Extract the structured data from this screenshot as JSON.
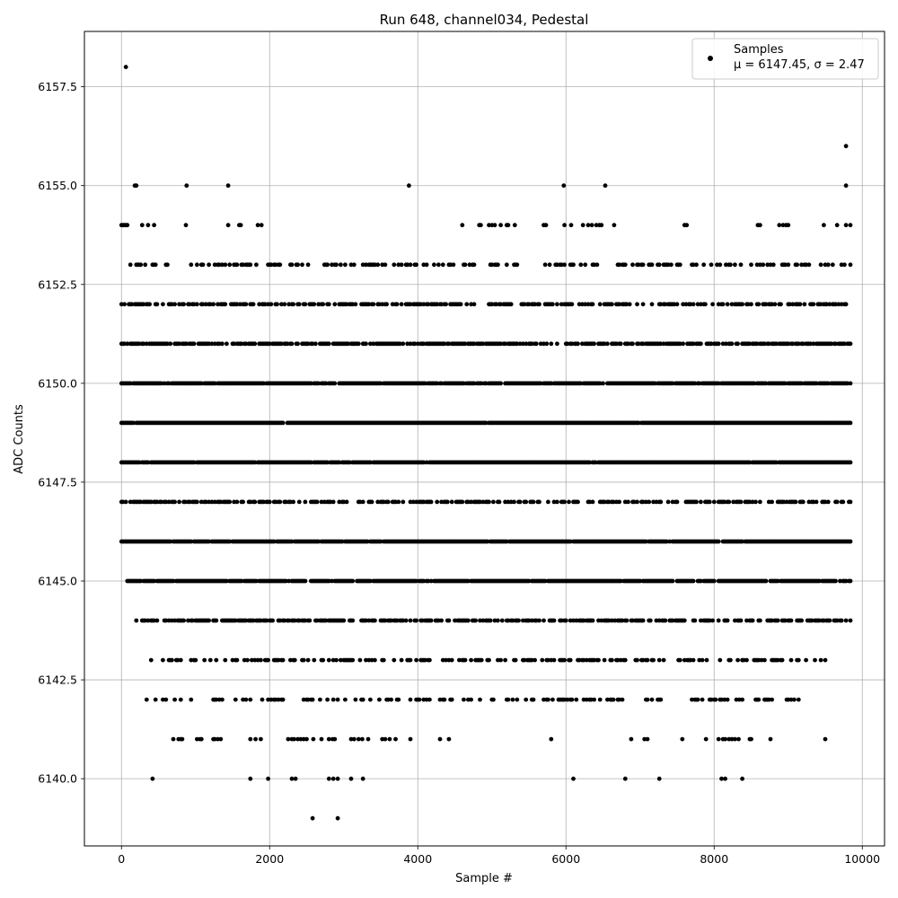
{
  "chart_data": {
    "type": "scatter",
    "title": "Run 648, channel034, Pedestal",
    "xlabel": "Sample #",
    "ylabel": "ADC Counts",
    "xlim": [
      -500,
      10300
    ],
    "ylim": [
      6138.3,
      6158.9
    ],
    "xticks": [
      0,
      2000,
      4000,
      6000,
      8000,
      10000
    ],
    "yticks": [
      6140.0,
      6142.5,
      6145.0,
      6147.5,
      6150.0,
      6152.5,
      6155.0,
      6157.5
    ],
    "xtick_labels": [
      "0",
      "2000",
      "4000",
      "6000",
      "8000",
      "10000"
    ],
    "ytick_labels": [
      "6140.0",
      "6142.5",
      "6145.0",
      "6147.5",
      "6150.0",
      "6152.5",
      "6155.0",
      "6157.5"
    ],
    "grid": true,
    "legend": {
      "placement": "top-right",
      "label_line1": "Samples",
      "label_line2": "μ = 6147.45, σ = 2.47"
    },
    "series": [
      {
        "name": "Samples",
        "color": "#000000",
        "sample_count": 9840,
        "levels": [
          {
            "y": 6158,
            "x": [
              60
            ]
          },
          {
            "y": 6156,
            "x": [
              9780
            ]
          },
          {
            "y": 6155,
            "x": [
              180,
              200,
              880,
              1440,
              3880,
              5970,
              6530,
              9780
            ]
          },
          {
            "y": 6154,
            "x": [
              0,
              20,
              40,
              60,
              80,
              280,
              360,
              440,
              870,
              1440,
              1590,
              1610,
              1840,
              1890,
              4600,
              4830,
              4850,
              4960,
              5000,
              5040,
              5120,
              5200,
              5220,
              5310,
              5700,
              5730,
              5980,
              6070,
              6230,
              6300,
              6350,
              6410,
              6450,
              6480,
              6650,
              7600,
              7630,
              8590,
              8620,
              8880,
              8930,
              8970,
              9000,
              9480,
              9660,
              9780,
              9840
            ]
          },
          {
            "y": 6153,
            "levels_density": 0.35,
            "ranges": [
              [
                0,
                9840
              ]
            ]
          },
          {
            "y": 6152,
            "levels_density": 0.55,
            "ranges": [
              [
                0,
                9840
              ]
            ]
          },
          {
            "y": 6151,
            "levels_density": 0.7,
            "ranges": [
              [
                0,
                9840
              ]
            ]
          },
          {
            "y": 6150,
            "levels_density": 0.92,
            "ranges": [
              [
                0,
                9840
              ]
            ]
          },
          {
            "y": 6149,
            "levels_density": 0.98,
            "ranges": [
              [
                0,
                9840
              ]
            ]
          },
          {
            "y": 6148,
            "levels_density": 0.98,
            "ranges": [
              [
                0,
                9840
              ]
            ]
          },
          {
            "y": 6147,
            "levels_density": 0.5,
            "ranges": [
              [
                0,
                9840
              ]
            ]
          },
          {
            "y": 6146,
            "levels_density": 0.96,
            "ranges": [
              [
                0,
                9840
              ]
            ]
          },
          {
            "y": 6145,
            "levels_density": 0.9,
            "ranges": [
              [
                80,
                9840
              ]
            ]
          },
          {
            "y": 6144,
            "levels_density": 0.6,
            "ranges": [
              [
                200,
                9840
              ]
            ]
          },
          {
            "y": 6143,
            "levels_density": 0.4,
            "ranges": [
              [
                400,
                9500
              ]
            ]
          },
          {
            "y": 6142,
            "levels_density": 0.3,
            "ranges": [
              [
                200,
                9150
              ]
            ]
          },
          {
            "y": 6141,
            "x": [
              700,
              770,
              800,
              820,
              1020,
              1060,
              1080,
              1240,
              1260,
              1300,
              1340,
              1740,
              1810,
              1880,
              2250,
              2300,
              2330,
              2380,
              2420,
              2460,
              2500,
              2590,
              2700,
              2800,
              2850,
              2880,
              3100,
              3140,
              3200,
              3250,
              3330,
              3520,
              3560,
              3620,
              3700,
              3900,
              4300,
              4420,
              5800,
              6880,
              7060,
              7100,
              7570,
              7890,
              8060,
              8120,
              8150,
              8200,
              8240,
              8280,
              8330,
              8480,
              8500,
              8760,
              9500
            ]
          },
          {
            "y": 6140,
            "x": [
              420,
              1740,
              1980,
              2300,
              2350,
              2800,
              2860,
              2920,
              3100,
              3260,
              6100,
              6800,
              7260,
              8100,
              8150,
              8380
            ]
          },
          {
            "y": 6139,
            "x": [
              2580,
              2920
            ]
          }
        ]
      }
    ]
  }
}
